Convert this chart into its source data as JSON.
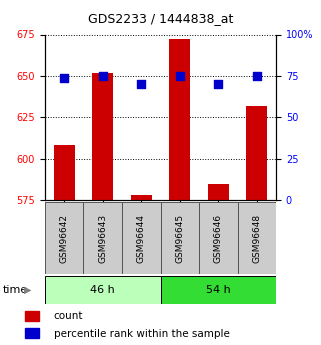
{
  "title": "GDS2233 / 1444838_at",
  "samples": [
    "GSM96642",
    "GSM96643",
    "GSM96644",
    "GSM96645",
    "GSM96646",
    "GSM96648"
  ],
  "counts": [
    608,
    652,
    578,
    672,
    585,
    632
  ],
  "percentiles": [
    74,
    75,
    70,
    75,
    70,
    75
  ],
  "left_ylim": [
    575,
    675
  ],
  "right_ylim": [
    0,
    100
  ],
  "left_yticks": [
    575,
    600,
    625,
    650,
    675
  ],
  "right_yticks": [
    0,
    25,
    50,
    75,
    100
  ],
  "right_yticklabels": [
    "0",
    "25",
    "50",
    "75",
    "100%"
  ],
  "bar_color": "#cc0000",
  "dot_color": "#0000cc",
  "group1_label": "46 h",
  "group2_label": "54 h",
  "group1_color": "#bbffbb",
  "group2_color": "#33dd33",
  "time_label": "time",
  "legend_count": "count",
  "legend_percentile": "percentile rank within the sample",
  "bar_width": 0.55,
  "dot_size": 30,
  "tick_label_fontsize": 7,
  "title_fontsize": 9
}
